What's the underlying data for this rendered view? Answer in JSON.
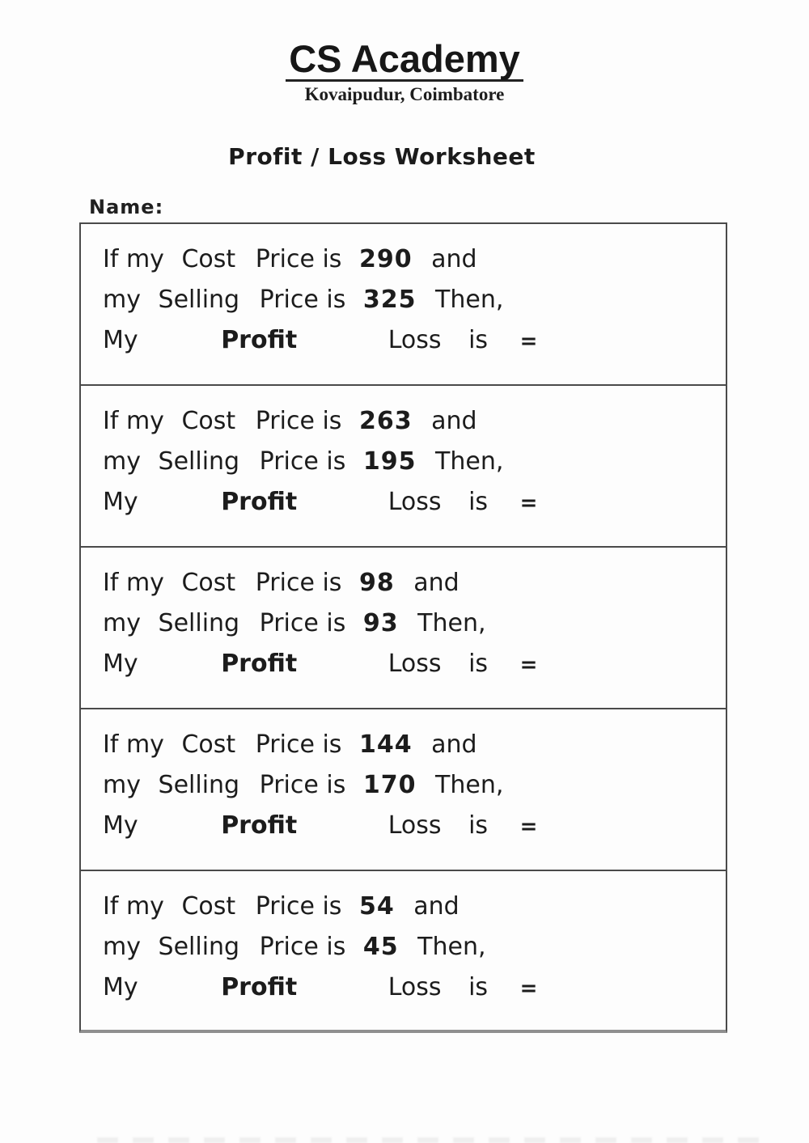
{
  "header": {
    "school_name": "CS Academy",
    "school_location": "Kovaipudur, Coimbatore"
  },
  "title": "Profit / Loss Worksheet",
  "name_label": "Name:",
  "labels": {
    "line1_start": "If my",
    "line1_cost": "Cost",
    "line1_price_is": "Price is",
    "line1_end": "and",
    "line2_start": "my",
    "line2_selling": "Selling",
    "line2_price_is": "Price is",
    "line2_end": "Then,",
    "line3_my": "My",
    "line3_profit": "Profit",
    "line3_loss": "Loss",
    "line3_is": "is",
    "line3_equals": "="
  },
  "problems": [
    {
      "cost_price": "290",
      "selling_price": "325"
    },
    {
      "cost_price": "263",
      "selling_price": "195"
    },
    {
      "cost_price": "98",
      "selling_price": "93"
    },
    {
      "cost_price": "144",
      "selling_price": "170"
    },
    {
      "cost_price": "54",
      "selling_price": "45"
    }
  ],
  "colors": {
    "box_border": "#4a4a4a",
    "text": "#1c1c1c",
    "underline": "#222222"
  }
}
